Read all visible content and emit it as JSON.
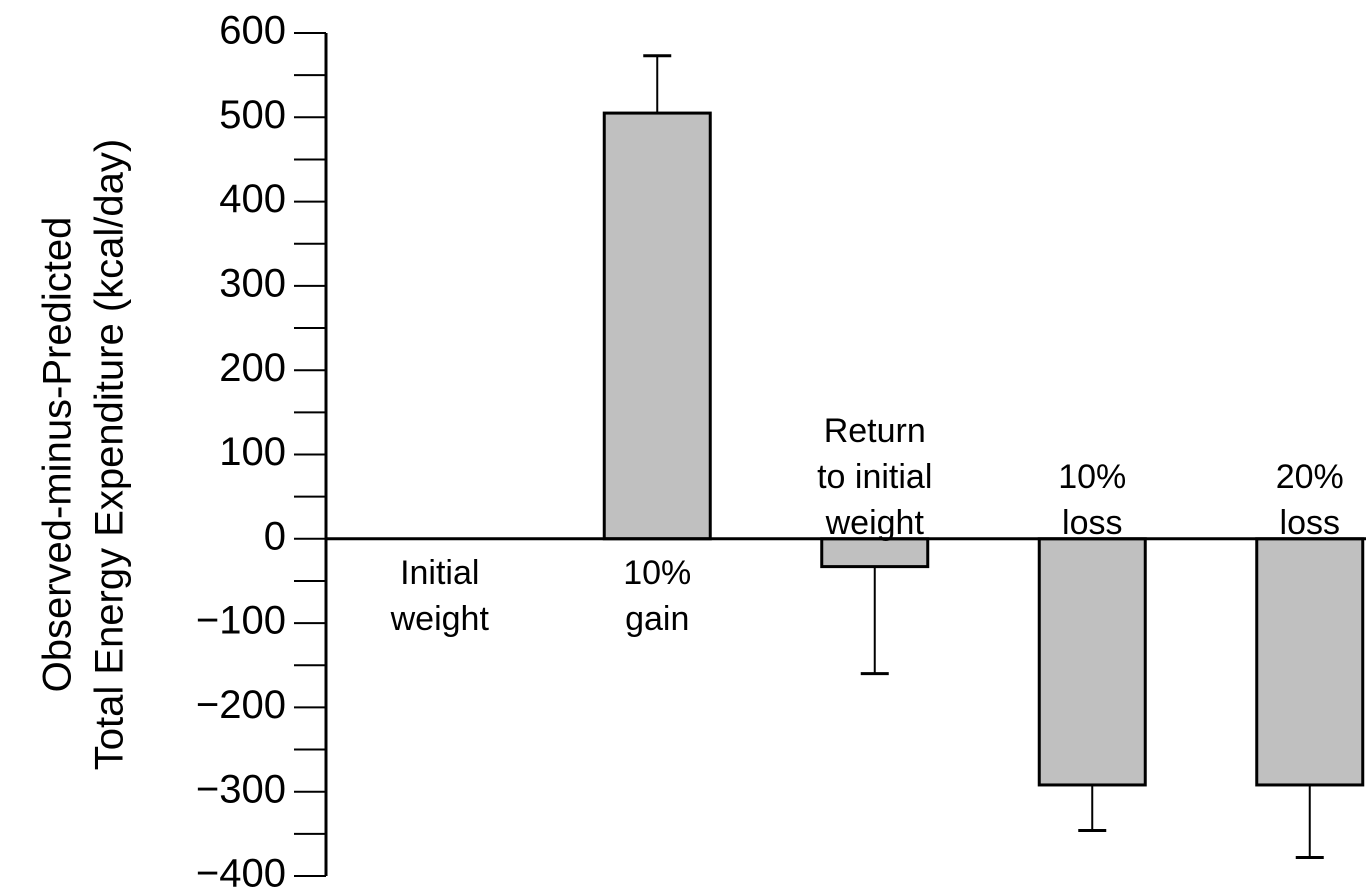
{
  "chart_data": {
    "type": "bar",
    "ylabel_lines": [
      "Observed-minus-Predicted",
      "Total Energy Expenditure (kcal/day)"
    ],
    "xlabel": "",
    "ylim": [
      -400,
      600
    ],
    "yticks": [
      600,
      500,
      400,
      300,
      200,
      100,
      0,
      -100,
      -200,
      -300,
      -400
    ],
    "ytick_labels": [
      "600",
      "500",
      "400",
      "300",
      "200",
      "100",
      "0",
      "−100",
      "−200",
      "−300",
      "−400"
    ],
    "grid": false,
    "bar_color": "#c0c0c0",
    "categories": [
      {
        "label_lines": [
          "Initial",
          "weight"
        ],
        "value": 0,
        "error": 0
      },
      {
        "label_lines": [
          "10%",
          "gain"
        ],
        "value": 505,
        "error": 68
      },
      {
        "label_lines": [
          "Return",
          "to initial",
          "weight"
        ],
        "value": -33,
        "error": 127
      },
      {
        "label_lines": [
          "10%",
          "loss"
        ],
        "value": -292,
        "error": 54
      },
      {
        "label_lines": [
          "20%",
          "loss"
        ],
        "value": -292,
        "error": 86
      }
    ]
  }
}
